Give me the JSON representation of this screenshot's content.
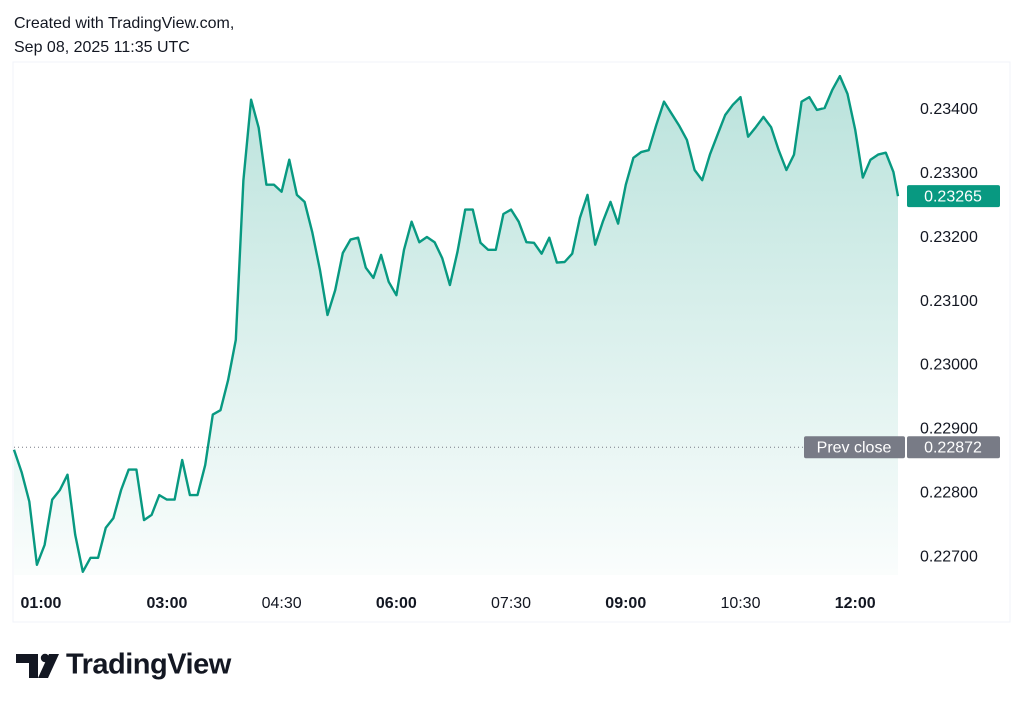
{
  "chart_data": {
    "type": "area",
    "title": "Created with TradingView.com,",
    "subtitle": "Sep 08, 2025 11:35 UTC",
    "brand": "TradingView",
    "x": [
      1.0,
      1.1,
      1.2,
      1.3,
      1.4,
      1.5,
      1.6,
      1.7,
      1.8,
      1.9,
      2.0,
      2.1,
      2.2,
      2.3,
      2.4,
      2.5,
      2.6,
      2.7,
      2.8,
      2.9,
      3.0,
      3.1,
      3.2,
      3.3,
      3.4,
      3.5,
      3.6,
      3.7,
      3.8,
      3.9,
      4.0,
      4.1,
      4.2,
      4.3,
      4.4,
      4.5,
      4.6,
      4.7,
      4.8,
      4.9,
      5.0,
      5.1,
      5.2,
      5.3,
      5.4,
      5.5,
      5.6,
      5.7,
      5.8,
      5.9,
      6.0,
      6.1,
      6.2,
      6.3,
      6.4,
      6.5,
      6.6,
      6.7,
      6.8,
      6.9,
      7.0,
      7.1,
      7.2,
      7.3,
      7.4,
      7.5,
      7.6,
      7.7,
      7.8,
      7.9,
      8.0,
      8.1,
      8.2,
      8.3,
      8.4,
      8.5,
      8.6,
      8.7,
      8.8,
      8.9,
      9.0,
      9.1,
      9.2,
      9.3,
      9.4,
      9.5,
      9.6,
      9.7,
      9.8,
      9.9,
      10.0,
      10.1,
      10.2,
      10.3,
      10.4,
      10.5,
      10.6,
      10.7,
      10.8,
      10.9,
      11.0,
      11.1,
      11.2,
      11.3,
      11.4,
      11.5,
      11.6,
      11.7,
      11.8,
      11.9,
      12.0,
      12.1,
      12.2,
      12.3,
      12.4,
      12.5,
      12.56
    ],
    "series": [
      {
        "color": "#089981",
        "values": [
          0.22868,
          0.22833,
          0.22787,
          0.22688,
          0.22719,
          0.2279,
          0.22805,
          0.22829,
          0.22735,
          0.22677,
          0.22699,
          0.22699,
          0.22746,
          0.22761,
          0.22805,
          0.22837,
          0.22837,
          0.22758,
          0.22766,
          0.22797,
          0.2279,
          0.2279,
          0.22852,
          0.22797,
          0.22797,
          0.22844,
          0.22923,
          0.2293,
          0.22977,
          0.2304,
          0.2329,
          0.23416,
          0.23372,
          0.23283,
          0.23283,
          0.23272,
          0.23322,
          0.23267,
          0.23256,
          0.23209,
          0.2315,
          0.23079,
          0.23118,
          0.23176,
          0.23197,
          0.232,
          0.23153,
          0.23137,
          0.23173,
          0.23131,
          0.2311,
          0.23181,
          0.23225,
          0.23193,
          0.23201,
          0.23193,
          0.23168,
          0.23126,
          0.23178,
          0.23244,
          0.23244,
          0.23192,
          0.23181,
          0.23181,
          0.23237,
          0.23244,
          0.23225,
          0.23193,
          0.23192,
          0.23175,
          0.232,
          0.23161,
          0.23162,
          0.23175,
          0.23231,
          0.23267,
          0.23189,
          0.23225,
          0.23256,
          0.23222,
          0.23283,
          0.23325,
          0.23334,
          0.23337,
          0.23377,
          0.23413,
          0.23394,
          0.23375,
          0.23353,
          0.23306,
          0.2329,
          0.2333,
          0.23361,
          0.23392,
          0.23408,
          0.2342,
          0.23358,
          0.23373,
          0.23389,
          0.23373,
          0.23337,
          0.23306,
          0.2333,
          0.23413,
          0.2342,
          0.234,
          0.23403,
          0.23431,
          0.23453,
          0.23425,
          0.23369,
          0.23294,
          0.23322,
          0.2333,
          0.23333,
          0.23303,
          0.23265
        ]
      }
    ],
    "xlim": [
      1,
      12.56
    ],
    "ylim": [
      0.22672,
      0.23475
    ],
    "xticks": [
      {
        "value": 1,
        "label": "01:00"
      },
      {
        "value": 3,
        "label": "03:00"
      },
      {
        "value": 4.5,
        "label": "04:30"
      },
      {
        "value": 6,
        "label": "06:00"
      },
      {
        "value": 7.5,
        "label": "07:30"
      },
      {
        "value": 9,
        "label": "09:00"
      },
      {
        "value": 10.5,
        "label": "10:30"
      },
      {
        "value": 12,
        "label": "12:00"
      }
    ],
    "yticks": [
      {
        "value": 0.227,
        "label": "0.22700"
      },
      {
        "value": 0.228,
        "label": "0.22800"
      },
      {
        "value": 0.229,
        "label": "0.22900"
      },
      {
        "value": 0.23,
        "label": "0.23000"
      },
      {
        "value": 0.231,
        "label": "0.23100"
      },
      {
        "value": 0.232,
        "label": "0.23200"
      },
      {
        "value": 0.233,
        "label": "0.23300"
      },
      {
        "value": 0.234,
        "label": "0.23400"
      }
    ],
    "prev_close": {
      "label": "Prev close",
      "value": 0.22872
    }
  }
}
